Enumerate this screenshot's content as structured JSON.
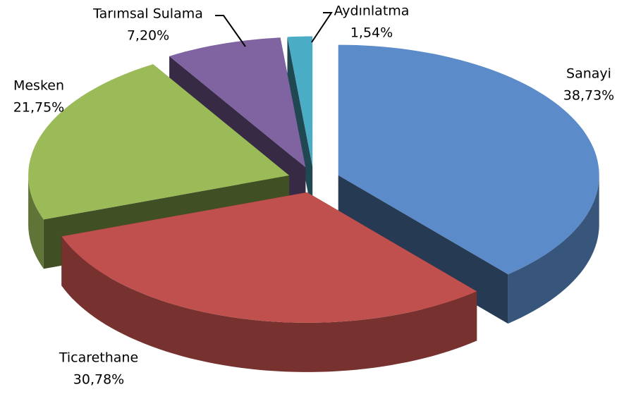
{
  "chart_data": {
    "type": "pie",
    "categories": [
      "Sanayi",
      "Ticarethane",
      "Mesken",
      "Tarımsal Sulama",
      "Aydınlatma"
    ],
    "values": [
      38.73,
      30.78,
      21.75,
      7.2,
      1.54
    ],
    "value_labels": [
      "38,73%",
      "30,78%",
      "21,75%",
      "7,20%",
      "1,54%"
    ],
    "colors": [
      "#5b8bc8",
      "#c0504d",
      "#9bbb59",
      "#8064a2",
      "#4bacc6"
    ]
  }
}
